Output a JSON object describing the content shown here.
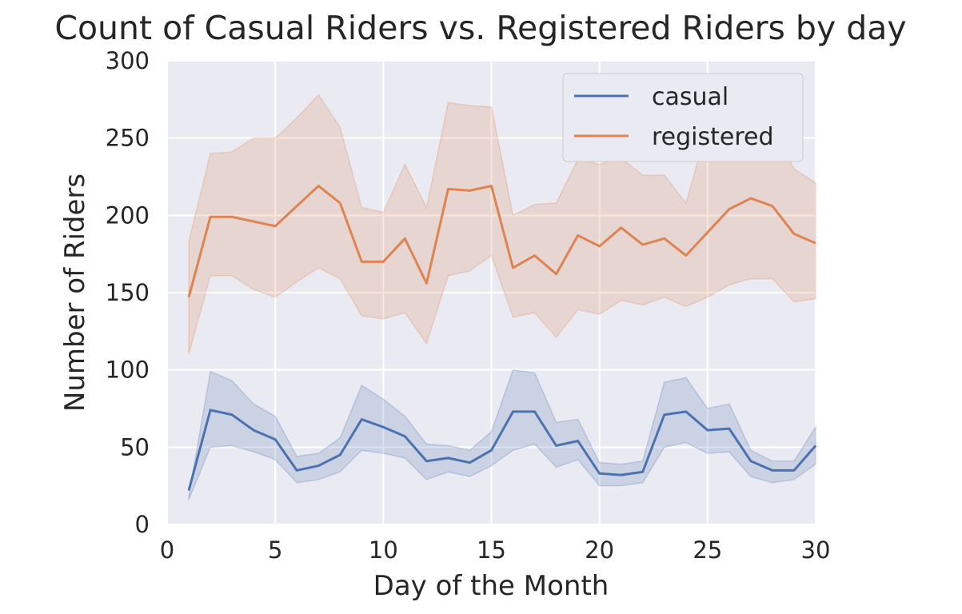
{
  "chart_data": {
    "type": "line",
    "title": "Count of Casual Riders vs. Registered Riders by day",
    "xlabel": "Day of the Month",
    "ylabel": "Number of Riders",
    "xlim": [
      0,
      30
    ],
    "ylim": [
      0,
      300
    ],
    "xticks": [
      0,
      5,
      10,
      15,
      20,
      25,
      30
    ],
    "yticks": [
      0,
      50,
      100,
      150,
      200,
      250,
      300
    ],
    "grid": true,
    "legend_position": "top-right",
    "x": [
      1,
      2,
      3,
      4,
      5,
      6,
      7,
      8,
      9,
      10,
      11,
      12,
      13,
      14,
      15,
      16,
      17,
      18,
      19,
      20,
      21,
      22,
      23,
      24,
      25,
      26,
      27,
      28,
      29,
      30
    ],
    "series": [
      {
        "name": "casual",
        "color": "#4c72b0",
        "values": [
          22,
          74,
          71,
          61,
          55,
          35,
          38,
          45,
          68,
          63,
          57,
          41,
          43,
          40,
          48,
          73,
          73,
          51,
          54,
          33,
          32,
          34,
          71,
          73,
          61,
          62,
          41,
          35,
          35,
          51
        ],
        "ci_upper": [
          18,
          99,
          93,
          78,
          70,
          44,
          46,
          56,
          90,
          81,
          70,
          52,
          51,
          48,
          60,
          100,
          98,
          66,
          68,
          40,
          39,
          41,
          92,
          95,
          75,
          78,
          48,
          41,
          41,
          63
        ],
        "ci_lower": [
          16,
          50,
          51,
          47,
          42,
          27,
          29,
          34,
          48,
          46,
          43,
          29,
          34,
          31,
          38,
          48,
          52,
          37,
          42,
          25,
          25,
          27,
          50,
          53,
          46,
          47,
          31,
          27,
          29,
          39
        ]
      },
      {
        "name": "registered",
        "color": "#dd8452",
        "values": [
          147,
          199,
          199,
          196,
          193,
          206,
          219,
          208,
          170,
          170,
          185,
          156,
          217,
          216,
          219,
          166,
          174,
          162,
          187,
          180,
          192,
          181,
          185,
          174,
          189,
          204,
          211,
          206,
          188,
          182
        ],
        "ci_upper": [
          183,
          240,
          241,
          250,
          250,
          263,
          278,
          257,
          205,
          202,
          233,
          205,
          273,
          271,
          270,
          200,
          207,
          208,
          236,
          233,
          237,
          226,
          226,
          208,
          257,
          261,
          265,
          257,
          230,
          221
        ],
        "ci_lower": [
          110,
          161,
          161,
          152,
          147,
          157,
          166,
          159,
          135,
          133,
          137,
          117,
          161,
          164,
          174,
          134,
          137,
          121,
          139,
          136,
          145,
          142,
          147,
          141,
          147,
          155,
          159,
          159,
          144,
          146
        ]
      }
    ]
  }
}
